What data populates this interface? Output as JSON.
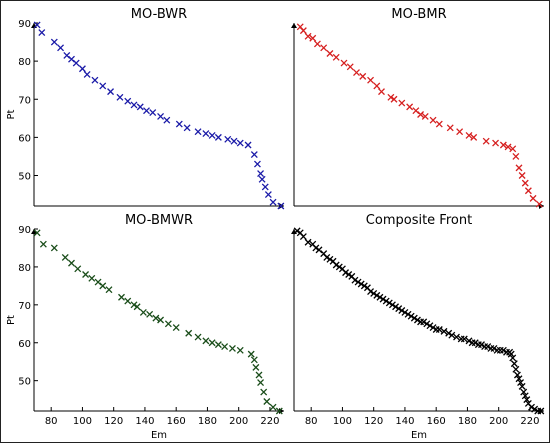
{
  "chart_data": [
    {
      "type": "scatter",
      "title": "MO-BWR",
      "xlabel": "",
      "ylabel": "Pt",
      "xlim": [
        69,
        229
      ],
      "ylim": [
        42,
        90
      ],
      "xticks": [],
      "yticks": [
        50,
        60,
        70,
        80,
        90
      ],
      "marker": "x",
      "color": "#1a1aa8",
      "points": [
        [
          71,
          89.5
        ],
        [
          74,
          87.5
        ],
        [
          82,
          85
        ],
        [
          86,
          83.5
        ],
        [
          90,
          81.5
        ],
        [
          93,
          80.5
        ],
        [
          96,
          79.5
        ],
        [
          100,
          78
        ],
        [
          103,
          76.5
        ],
        [
          108,
          75
        ],
        [
          113,
          73.5
        ],
        [
          118,
          72
        ],
        [
          124,
          70.5
        ],
        [
          129,
          69.5
        ],
        [
          133,
          68.5
        ],
        [
          137,
          68
        ],
        [
          141,
          67
        ],
        [
          145,
          66.5
        ],
        [
          150,
          65.5
        ],
        [
          154,
          64.5
        ],
        [
          162,
          63.5
        ],
        [
          167,
          62.5
        ],
        [
          174,
          61.5
        ],
        [
          179,
          61
        ],
        [
          183,
          60.5
        ],
        [
          187,
          60
        ],
        [
          193,
          59.5
        ],
        [
          197,
          59
        ],
        [
          201,
          58.5
        ],
        [
          206,
          58
        ],
        [
          210,
          55.5
        ],
        [
          212,
          53
        ],
        [
          214,
          50.5
        ],
        [
          215,
          49
        ],
        [
          217,
          47
        ],
        [
          219,
          45
        ],
        [
          222,
          43
        ],
        [
          227,
          42
        ]
      ]
    },
    {
      "type": "scatter",
      "title": "MO-BMR",
      "xlabel": "",
      "ylabel": "",
      "xlim": [
        69,
        229
      ],
      "ylim": [
        42,
        90
      ],
      "xticks": [],
      "yticks": [],
      "marker": "x",
      "color": "#d62020",
      "points": [
        [
          73,
          89
        ],
        [
          75,
          88
        ],
        [
          78,
          86.5
        ],
        [
          81,
          86
        ],
        [
          84,
          84.5
        ],
        [
          88,
          83.5
        ],
        [
          92,
          82
        ],
        [
          96,
          81
        ],
        [
          101,
          79.5
        ],
        [
          105,
          78.5
        ],
        [
          109,
          77
        ],
        [
          113,
          76
        ],
        [
          118,
          75
        ],
        [
          122,
          73.5
        ],
        [
          125,
          72
        ],
        [
          131,
          70.5
        ],
        [
          133,
          70
        ],
        [
          138,
          69
        ],
        [
          143,
          68
        ],
        [
          147,
          67
        ],
        [
          150,
          66
        ],
        [
          153,
          65.5
        ],
        [
          158,
          64.5
        ],
        [
          162,
          63.5
        ],
        [
          169,
          62.5
        ],
        [
          175,
          61.5
        ],
        [
          181,
          60.5
        ],
        [
          184,
          60
        ],
        [
          192,
          59
        ],
        [
          198,
          58.5
        ],
        [
          203,
          58
        ],
        [
          206,
          57.5
        ],
        [
          209,
          57
        ],
        [
          211,
          55
        ],
        [
          213,
          52
        ],
        [
          215,
          50
        ],
        [
          217,
          48
        ],
        [
          219,
          46
        ],
        [
          222,
          44
        ],
        [
          226,
          42.5
        ]
      ]
    },
    {
      "type": "scatter",
      "title": "MO-BMWR",
      "xlabel": "Em",
      "ylabel": "Pt",
      "xlim": [
        69,
        229
      ],
      "ylim": [
        42,
        90
      ],
      "xticks": [
        80,
        100,
        120,
        140,
        160,
        180,
        200,
        220
      ],
      "yticks": [
        50,
        60,
        70,
        80,
        90
      ],
      "marker": "x",
      "color": "#1a4d1a",
      "points": [
        [
          71,
          89
        ],
        [
          75,
          86
        ],
        [
          82,
          85
        ],
        [
          89,
          82.5
        ],
        [
          93,
          81
        ],
        [
          97,
          79.5
        ],
        [
          102,
          78
        ],
        [
          106,
          77
        ],
        [
          110,
          76
        ],
        [
          113,
          75
        ],
        [
          117,
          74
        ],
        [
          125,
          72
        ],
        [
          129,
          71
        ],
        [
          133,
          70
        ],
        [
          135,
          69.5
        ],
        [
          139,
          68
        ],
        [
          143,
          67.5
        ],
        [
          147,
          66.5
        ],
        [
          150,
          66
        ],
        [
          155,
          65
        ],
        [
          160,
          64
        ],
        [
          168,
          62.5
        ],
        [
          174,
          61.5
        ],
        [
          179,
          60.5
        ],
        [
          183,
          60
        ],
        [
          187,
          59.5
        ],
        [
          191,
          59
        ],
        [
          196,
          58.5
        ],
        [
          201,
          58
        ],
        [
          208,
          57
        ],
        [
          210,
          55.5
        ],
        [
          211,
          53.5
        ],
        [
          213,
          51.5
        ],
        [
          214,
          49.5
        ],
        [
          216,
          47
        ],
        [
          218,
          44.5
        ],
        [
          222,
          43
        ],
        [
          226,
          42
        ]
      ]
    },
    {
      "type": "scatter",
      "title": "Composite Front",
      "xlabel": "Em",
      "ylabel": "",
      "xlim": [
        69,
        229
      ],
      "ylim": [
        42,
        90
      ],
      "xticks": [
        80,
        100,
        120,
        140,
        160,
        180,
        200,
        220
      ],
      "yticks": [],
      "marker": "x",
      "color": "#000000",
      "points": [
        [
          71,
          89.5
        ],
        [
          73,
          89
        ],
        [
          75,
          88
        ],
        [
          78,
          86.5
        ],
        [
          81,
          86
        ],
        [
          83,
          85
        ],
        [
          85,
          84.5
        ],
        [
          88,
          83.5
        ],
        [
          90,
          82.5
        ],
        [
          92,
          82
        ],
        [
          94,
          81.5
        ],
        [
          96,
          80.5
        ],
        [
          98,
          80
        ],
        [
          100,
          79.5
        ],
        [
          102,
          78.5
        ],
        [
          104,
          78
        ],
        [
          106,
          77.5
        ],
        [
          108,
          76.5
        ],
        [
          110,
          76
        ],
        [
          112,
          75.5
        ],
        [
          114,
          75
        ],
        [
          116,
          74.5
        ],
        [
          118,
          73.5
        ],
        [
          120,
          73
        ],
        [
          122,
          72.5
        ],
        [
          124,
          72
        ],
        [
          126,
          71.5
        ],
        [
          128,
          71
        ],
        [
          130,
          70.5
        ],
        [
          132,
          70
        ],
        [
          134,
          69.5
        ],
        [
          136,
          69
        ],
        [
          138,
          68.5
        ],
        [
          140,
          68
        ],
        [
          142,
          67.5
        ],
        [
          144,
          67
        ],
        [
          146,
          66.5
        ],
        [
          148,
          66
        ],
        [
          150,
          65.5
        ],
        [
          152,
          65.5
        ],
        [
          154,
          65
        ],
        [
          156,
          64.5
        ],
        [
          158,
          64
        ],
        [
          160,
          63.5
        ],
        [
          162,
          63.5
        ],
        [
          165,
          63
        ],
        [
          168,
          62.5
        ],
        [
          170,
          62
        ],
        [
          173,
          61.5
        ],
        [
          176,
          61
        ],
        [
          178,
          61
        ],
        [
          181,
          60.5
        ],
        [
          183,
          60
        ],
        [
          185,
          60
        ],
        [
          187,
          59.5
        ],
        [
          189,
          59.5
        ],
        [
          191,
          59
        ],
        [
          193,
          59
        ],
        [
          195,
          58.5
        ],
        [
          197,
          58.5
        ],
        [
          199,
          58
        ],
        [
          201,
          58
        ],
        [
          203,
          58
        ],
        [
          205,
          57.5
        ],
        [
          207,
          57.5
        ],
        [
          208,
          57
        ],
        [
          209,
          56
        ],
        [
          210,
          54.5
        ],
        [
          211,
          53
        ],
        [
          212,
          51.5
        ],
        [
          213,
          50.5
        ],
        [
          214,
          49.5
        ],
        [
          215,
          48.5
        ],
        [
          216,
          47
        ],
        [
          217,
          46
        ],
        [
          218,
          45
        ],
        [
          219,
          44
        ],
        [
          221,
          43
        ],
        [
          223,
          42.5
        ],
        [
          225,
          42
        ],
        [
          227,
          42
        ]
      ]
    }
  ]
}
